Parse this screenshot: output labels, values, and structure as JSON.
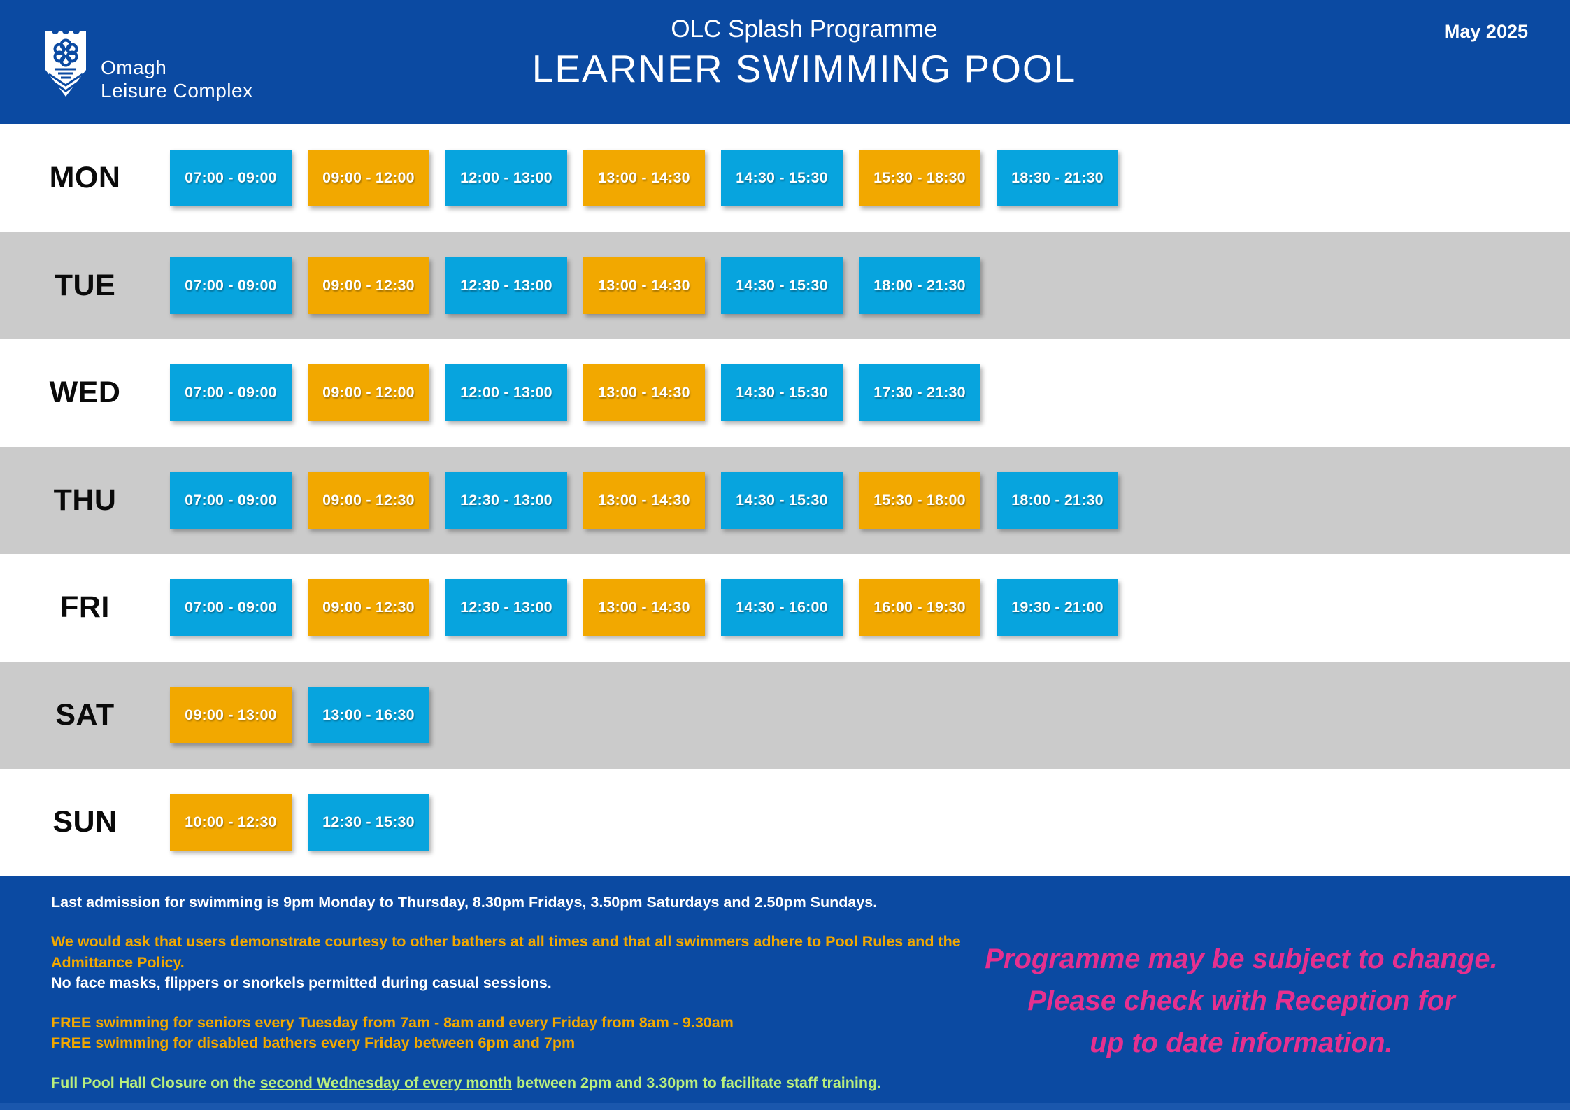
{
  "header": {
    "logo_line1": "Omagh",
    "logo_line2": "Leisure Complex",
    "subtitle": "OLC Splash Programme",
    "title": "LEARNER SWIMMING POOL",
    "date": "May 2025"
  },
  "colors": {
    "header_blue": "#0b4aa2",
    "slot_blue": "#07a4de",
    "slot_orange": "#f2a800",
    "stripe_gray": "#cbcbcb",
    "notice_pink": "#e6308f",
    "note_green": "#b9ee7e"
  },
  "schedule": {
    "days": [
      {
        "label": "MON",
        "slots": [
          {
            "time": "07:00 - 09:00",
            "type": "blue"
          },
          {
            "time": "09:00 - 12:00",
            "type": "orange"
          },
          {
            "time": "12:00 - 13:00",
            "type": "blue"
          },
          {
            "time": "13:00 - 14:30",
            "type": "orange"
          },
          {
            "time": "14:30 - 15:30",
            "type": "blue"
          },
          {
            "time": "15:30 - 18:30",
            "type": "orange"
          },
          {
            "time": "18:30 - 21:30",
            "type": "blue"
          }
        ]
      },
      {
        "label": "TUE",
        "slots": [
          {
            "time": "07:00 - 09:00",
            "type": "blue"
          },
          {
            "time": "09:00 - 12:30",
            "type": "orange"
          },
          {
            "time": "12:30 - 13:00",
            "type": "blue"
          },
          {
            "time": "13:00 - 14:30",
            "type": "orange"
          },
          {
            "time": "14:30 - 15:30",
            "type": "blue"
          },
          {
            "time": "18:00 - 21:30",
            "type": "blue"
          }
        ]
      },
      {
        "label": "WED",
        "slots": [
          {
            "time": "07:00 - 09:00",
            "type": "blue"
          },
          {
            "time": "09:00 - 12:00",
            "type": "orange"
          },
          {
            "time": "12:00 - 13:00",
            "type": "blue"
          },
          {
            "time": "13:00 - 14:30",
            "type": "orange"
          },
          {
            "time": "14:30 - 15:30",
            "type": "blue"
          },
          {
            "time": "17:30 - 21:30",
            "type": "blue"
          }
        ]
      },
      {
        "label": "THU",
        "slots": [
          {
            "time": "07:00 - 09:00",
            "type": "blue"
          },
          {
            "time": "09:00 - 12:30",
            "type": "orange"
          },
          {
            "time": "12:30 - 13:00",
            "type": "blue"
          },
          {
            "time": "13:00 - 14:30",
            "type": "orange"
          },
          {
            "time": "14:30 - 15:30",
            "type": "blue"
          },
          {
            "time": "15:30 - 18:00",
            "type": "orange"
          },
          {
            "time": "18:00 - 21:30",
            "type": "blue"
          }
        ]
      },
      {
        "label": "FRI",
        "slots": [
          {
            "time": "07:00 - 09:00",
            "type": "blue"
          },
          {
            "time": "09:00 - 12:30",
            "type": "orange"
          },
          {
            "time": "12:30 - 13:00",
            "type": "blue"
          },
          {
            "time": "13:00 - 14:30",
            "type": "orange"
          },
          {
            "time": "14:30 - 16:00",
            "type": "blue"
          },
          {
            "time": "16:00 - 19:30",
            "type": "orange"
          },
          {
            "time": "19:30 - 21:00",
            "type": "blue"
          }
        ]
      },
      {
        "label": "SAT",
        "slots": [
          {
            "time": "09:00 - 13:00",
            "type": "orange"
          },
          {
            "time": "13:00 - 16:30",
            "type": "blue"
          }
        ]
      },
      {
        "label": "SUN",
        "slots": [
          {
            "time": "10:00 - 12:30",
            "type": "orange"
          },
          {
            "time": "12:30 - 15:30",
            "type": "blue"
          }
        ]
      }
    ]
  },
  "footer": {
    "notes": [
      {
        "color": "white",
        "gap": false,
        "text": "Last admission for swimming is 9pm Monday to Thursday, 8.30pm Fridays, 3.50pm Saturdays and 2.50pm Sundays."
      },
      {
        "color": "orange",
        "gap": true,
        "text": "We would ask that users demonstrate courtesy to other bathers at all times and that all swimmers adhere to Pool Rules and the Admittance Policy."
      },
      {
        "color": "white",
        "gap": false,
        "text": "No face masks, flippers or snorkels permitted during casual sessions."
      },
      {
        "color": "orange",
        "gap": true,
        "text": "FREE swimming for seniors every Tuesday from 7am - 8am and every Friday from 8am - 9.30am"
      },
      {
        "color": "orange",
        "gap": false,
        "text": "FREE swimming for disabled bathers every Friday between 6pm and 7pm"
      },
      {
        "color": "green",
        "gap": true,
        "parts": {
          "prefix": "Full Pool Hall Closure on the ",
          "underline": "second Wednesday of every month",
          "suffix": " between 2pm and 3.30pm to facilitate staff training."
        }
      }
    ],
    "notice_lines": [
      "Programme may be subject to change.",
      "Please check with Reception for",
      "up to date information."
    ]
  }
}
